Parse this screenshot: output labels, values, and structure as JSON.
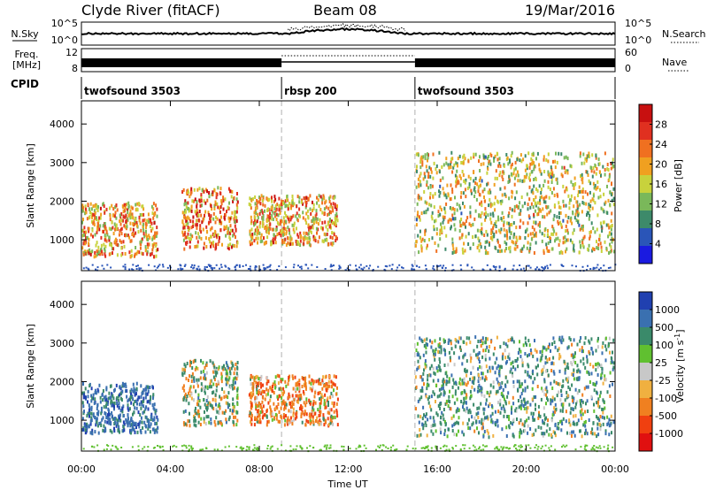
{
  "header": {
    "title_left": "Clyde River (fitACF)",
    "title_center": "Beam 08",
    "title_right": "19/Mar/2016"
  },
  "noise_panel": {
    "left_label": "N.Sky",
    "right_label": "N.Search",
    "left_ticks": [
      "10^5",
      "10^0"
    ],
    "right_ticks": [
      "10^5",
      "10^0"
    ]
  },
  "freq_panel": {
    "left_label_line1": "Freq.",
    "left_label_line2": "[MHz]",
    "right_label": "Nave",
    "left_ticks": [
      "12",
      "8"
    ],
    "right_ticks": [
      "60",
      "0"
    ]
  },
  "cpid_panel": {
    "label": "CPID",
    "segments": [
      {
        "name": "twofsound 3503",
        "start_hour": 0,
        "end_hour": 9
      },
      {
        "name": "rbsp 200",
        "start_hour": 9,
        "end_hour": 15
      },
      {
        "name": "twofsound 3503",
        "start_hour": 15,
        "end_hour": 24
      }
    ]
  },
  "x_axis": {
    "label": "Time UT",
    "ticks": [
      "00:00",
      "04:00",
      "08:00",
      "12:00",
      "16:00",
      "20:00",
      "00:00"
    ],
    "tick_hours": [
      0,
      4,
      8,
      12,
      16,
      20,
      24
    ]
  },
  "colors": {
    "power_scale": [
      "#1a1ae0",
      "#2a55b8",
      "#3d8a6a",
      "#7ab85a",
      "#c8d23c",
      "#f0a020",
      "#f07020",
      "#e03020",
      "#c81010"
    ],
    "velocity_scale": [
      "#e01010",
      "#f04010",
      "#f08020",
      "#f0b040",
      "#c8c8c8",
      "#60c030",
      "#3a8a6a",
      "#3a70b0",
      "#2040b0"
    ]
  },
  "chart_data": [
    {
      "type": "heatmap",
      "ylabel": "Slant Range [km]",
      "ylim": [
        200,
        4600
      ],
      "y_ticks": [
        1000,
        2000,
        3000,
        4000
      ],
      "xlim_hours": [
        0,
        24
      ],
      "colorbar": {
        "label": "Power [dB]",
        "range": [
          0,
          32
        ],
        "tick_labels": [
          "4",
          "8",
          "12",
          "16",
          "20",
          "24",
          "28"
        ],
        "tick_values": [
          4,
          8,
          12,
          16,
          20,
          24,
          28
        ]
      },
      "scatter_regions": [
        {
          "start_hour": 0.0,
          "end_hour": 3.4,
          "range_min": 600,
          "range_max": 2000,
          "dominant_level": 20
        },
        {
          "start_hour": 4.5,
          "end_hour": 7.0,
          "range_min": 800,
          "range_max": 2400,
          "dominant_level": 22
        },
        {
          "start_hour": 7.5,
          "end_hour": 11.5,
          "range_min": 900,
          "range_max": 2200,
          "dominant_level": 20
        },
        {
          "start_hour": 15.0,
          "end_hour": 24.0,
          "range_min": 700,
          "range_max": 3300,
          "dominant_level": 16
        }
      ]
    },
    {
      "type": "heatmap",
      "ylabel": "Slant Range [km]",
      "ylim": [
        200,
        4600
      ],
      "y_ticks": [
        1000,
        2000,
        3000,
        4000
      ],
      "xlim_hours": [
        0,
        24
      ],
      "colorbar": {
        "label": "Velocity [m s^-1]",
        "tick_labels": [
          "1000",
          "500",
          "100",
          "25",
          "-25",
          "-100",
          "-500",
          "-1000"
        ]
      },
      "scatter_regions": [
        {
          "start_hour": 0.0,
          "end_hour": 3.4,
          "range_min": 700,
          "range_max": 2000,
          "dominant_velocity": 700
        },
        {
          "start_hour": 4.5,
          "end_hour": 7.0,
          "range_min": 900,
          "range_max": 2600,
          "dominant_velocity": 100
        },
        {
          "start_hour": 7.5,
          "end_hour": 11.5,
          "range_min": 900,
          "range_max": 2200,
          "dominant_velocity": -300
        },
        {
          "start_hour": 15.0,
          "end_hour": 24.0,
          "range_min": 600,
          "range_max": 3200,
          "dominant_velocity": 300
        }
      ]
    }
  ]
}
